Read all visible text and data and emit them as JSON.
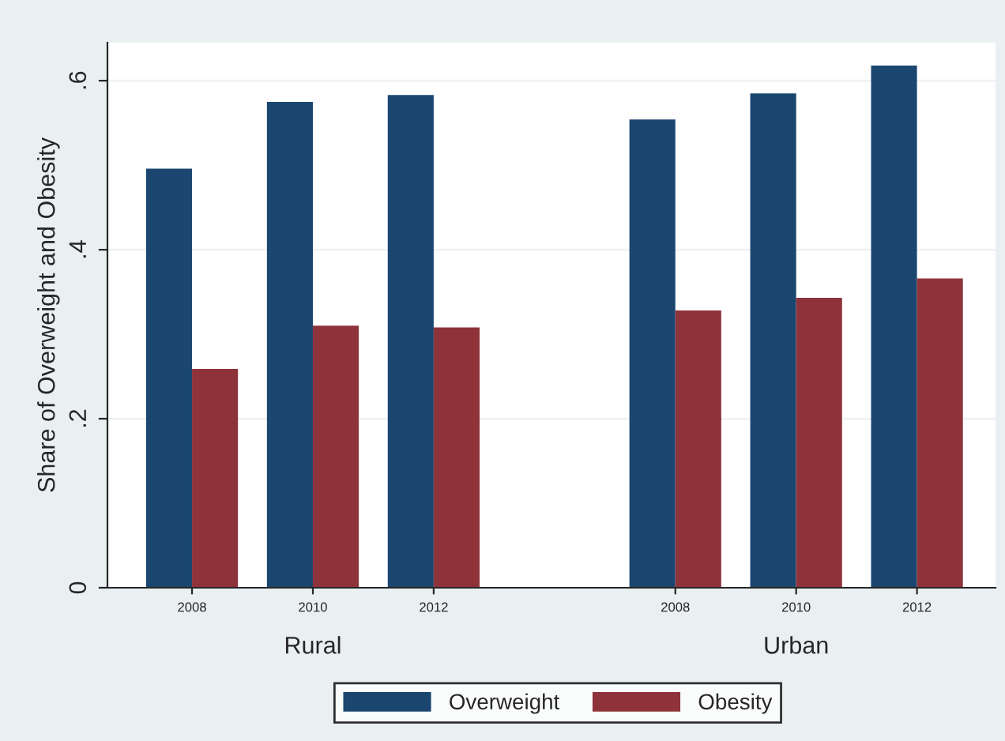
{
  "chart_data": {
    "type": "bar",
    "ylabel": "Share of Overweight and Obesity",
    "categories": [
      "2008",
      "2010",
      "2012",
      null,
      "2008",
      "2010",
      "2012"
    ],
    "series": [
      {
        "name": "Overweight",
        "color": "#1a4670",
        "values": [
          0.496,
          0.575,
          0.583,
          null,
          0.554,
          0.585,
          0.618
        ]
      },
      {
        "name": "Obesity",
        "color": "#8f333b",
        "values": [
          0.259,
          0.31,
          0.308,
          null,
          0.328,
          0.343,
          0.366
        ]
      }
    ],
    "annotations": [
      "Rural",
      "Urban"
    ],
    "ylim": [
      0,
      0.645
    ],
    "yticks": [
      0,
      {
        "value": 0.2,
        "label": ".2"
      },
      {
        "value": 0.4,
        "label": ".4"
      },
      {
        "value": 0.6,
        "label": ".6"
      }
    ],
    "grid": "y",
    "legend": "bottom"
  }
}
